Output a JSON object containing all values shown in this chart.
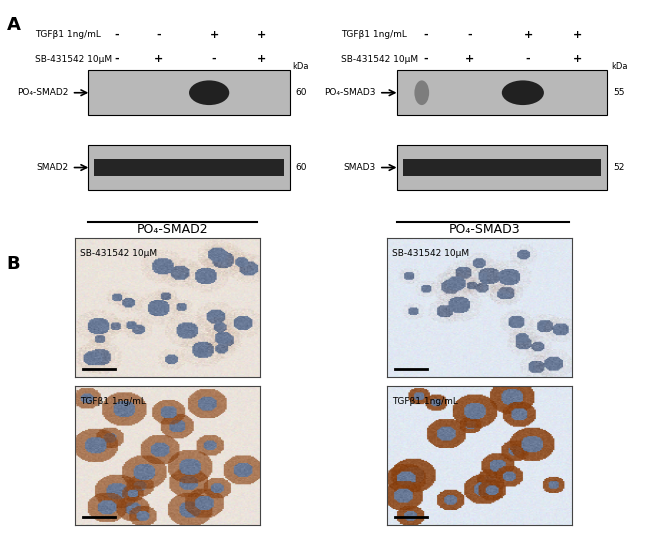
{
  "fig_width": 6.5,
  "fig_height": 5.42,
  "dpi": 100,
  "bg_color": "#ffffff",
  "panel_A_label": "A",
  "panel_B_label": "B",
  "kda_label": "kDa",
  "left_wb": {
    "tgf_label": "TGFβ1 1ng/mL",
    "sb_label": "SB-431542 10μM",
    "tgf_vals": [
      "-",
      "-",
      "+",
      "+"
    ],
    "sb_vals": [
      "-",
      "+",
      "-",
      "+"
    ],
    "band1_label": "PO₄-SMAD2",
    "band1_kda": "60",
    "band2_label": "SMAD2",
    "band2_kda": "60",
    "is_right": false
  },
  "right_wb": {
    "tgf_label": "TGFβ1 1ng/mL",
    "sb_label": "SB-431542 10μM",
    "tgf_vals": [
      "-",
      "-",
      "+",
      "+"
    ],
    "sb_vals": [
      "-",
      "+",
      "-",
      "+"
    ],
    "band1_label": "PO₄-SMAD3",
    "band1_kda": "55",
    "band2_label": "SMAD3",
    "band2_kda": "52",
    "is_right": true
  },
  "left_ihc_title": "PO₄-SMAD2",
  "right_ihc_title": "PO₄-SMAD3",
  "wb_bg_color": "#b8b8b8",
  "wb_band_dark": "#111111",
  "wb_band_faint": "#777777",
  "scale_bar_color": "#000000"
}
